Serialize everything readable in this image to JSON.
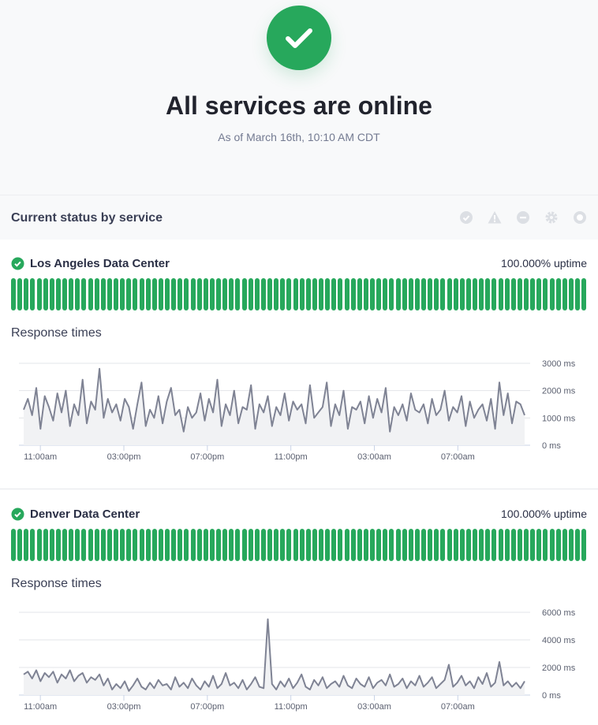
{
  "header": {
    "title": "All services are online",
    "subtitle": "As of March 16th, 10:10 AM CDT",
    "status_icon": "check-circle-icon",
    "accent": "#27a85c"
  },
  "status_section": {
    "title": "Current status by service",
    "legend_icons": [
      "operational-icon",
      "degraded-icon",
      "outage-icon",
      "maintenance-icon",
      "not-monitored-icon"
    ]
  },
  "services": [
    {
      "name": "Los Angeles Data Center",
      "uptime": "100.000% uptime",
      "uptime_days": 90,
      "response_label": "Response times"
    },
    {
      "name": "Denver Data Center",
      "uptime": "100.000% uptime",
      "uptime_days": 90,
      "response_label": "Response times"
    }
  ],
  "chart_data": [
    {
      "type": "area",
      "title": "Response times",
      "ylim": [
        0,
        3000
      ],
      "yticks": [
        "3000 ms",
        "2000 ms",
        "1000 ms",
        "0 ms"
      ],
      "ytick_values": [
        3000,
        2000,
        1000,
        0
      ],
      "xticks": [
        "11:00am",
        "03:00pm",
        "07:00pm",
        "11:00pm",
        "03:00am",
        "07:00am"
      ],
      "x_start_hours": -0.8,
      "x_end_hours": 23.2,
      "values": [
        1300,
        1700,
        1100,
        2100,
        600,
        1800,
        1400,
        900,
        1900,
        1200,
        2000,
        700,
        1500,
        1100,
        2400,
        800,
        1600,
        1300,
        2800,
        1000,
        1700,
        1200,
        1500,
        900,
        1700,
        1400,
        600,
        1500,
        2300,
        700,
        1300,
        1000,
        1800,
        800,
        1600,
        2100,
        1100,
        1300,
        500,
        1400,
        1000,
        1200,
        1900,
        900,
        1700,
        1200,
        2400,
        700,
        1500,
        1100,
        2000,
        800,
        1400,
        1300,
        2200,
        600,
        1500,
        1200,
        1800,
        700,
        1400,
        1100,
        1900,
        900,
        1600,
        1300,
        1500,
        800,
        2200,
        1000,
        1200,
        1400,
        2300,
        700,
        1500,
        1100,
        2000,
        600,
        1400,
        1300,
        1600,
        800,
        1800,
        1000,
        1700,
        1200,
        2100,
        500,
        1400,
        1100,
        1500,
        900,
        1900,
        1300,
        1200,
        1500,
        800,
        1700,
        1100,
        1300,
        2000,
        900,
        1400,
        1200,
        1800,
        700,
        1600,
        1000,
        1300,
        1500,
        900,
        1700,
        600,
        2300,
        1100,
        1900,
        800,
        1600,
        1500,
        1100
      ]
    },
    {
      "type": "area",
      "title": "Response times",
      "ylim": [
        0,
        6000
      ],
      "yticks": [
        "6000 ms",
        "4000 ms",
        "2000 ms",
        "0 ms"
      ],
      "ytick_values": [
        6000,
        4000,
        2000,
        0
      ],
      "xticks": [
        "11:00am",
        "03:00pm",
        "07:00pm",
        "11:00pm",
        "03:00am",
        "07:00am"
      ],
      "x_start_hours": -0.8,
      "x_end_hours": 23.2,
      "values": [
        1500,
        1700,
        1200,
        1800,
        1000,
        1600,
        1300,
        1700,
        900,
        1500,
        1200,
        1800,
        1000,
        1400,
        1600,
        900,
        1300,
        1100,
        1500,
        700,
        1200,
        400,
        800,
        500,
        1000,
        300,
        700,
        1200,
        600,
        400,
        900,
        500,
        1100,
        700,
        800,
        400,
        1300,
        600,
        900,
        500,
        1200,
        700,
        400,
        1000,
        600,
        1400,
        500,
        800,
        1600,
        700,
        900,
        500,
        1100,
        400,
        800,
        1300,
        600,
        500,
        5500,
        800,
        400,
        1000,
        600,
        1200,
        500,
        900,
        1500,
        600,
        400,
        1100,
        700,
        1300,
        500,
        800,
        1000,
        600,
        1400,
        700,
        500,
        1200,
        800,
        600,
        1300,
        500,
        900,
        1100,
        700,
        1500,
        600,
        800,
        1200,
        500,
        1000,
        700,
        1400,
        600,
        900,
        1300,
        500,
        800,
        1100,
        2200,
        600,
        900,
        1400,
        700,
        1000,
        500,
        1300,
        800,
        1600,
        600,
        900,
        2400,
        700,
        1000,
        600,
        900,
        500,
        1000
      ]
    }
  ]
}
